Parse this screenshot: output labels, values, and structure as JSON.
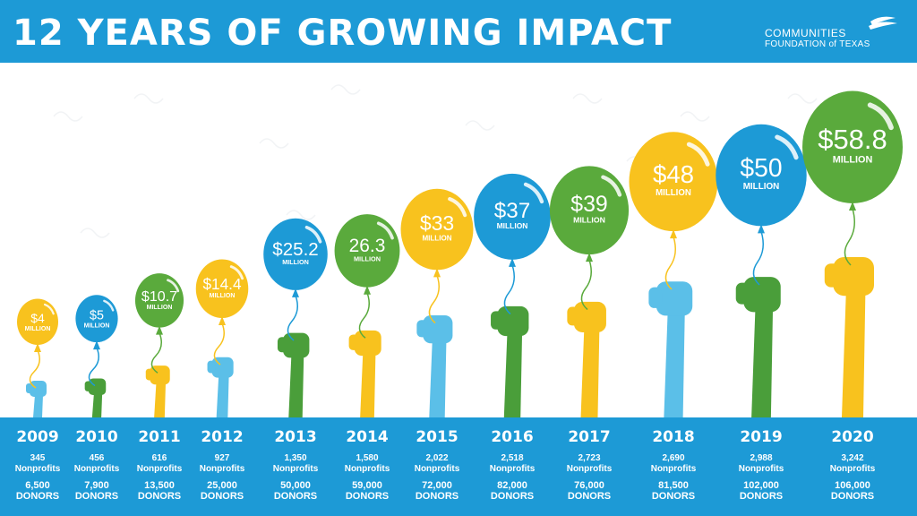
{
  "header": {
    "title": "12 YEARS OF GROWING IMPACT",
    "logo_line1": "COMMUNITIES",
    "logo_line2": "FOUNDATION of TEXAS"
  },
  "colors": {
    "header_blue": "#1d9ad6",
    "balloon_yellow": "#f8c21e",
    "balloon_blue": "#1d9ad6",
    "balloon_green": "#5aaa3c",
    "hand_yellow": "#f8c21e",
    "hand_blue": "#5bbfe8",
    "hand_green": "#4a9e3a"
  },
  "chart_data": {
    "type": "bar",
    "title": "12 YEARS OF GROWING IMPACT",
    "unit": "MILLION",
    "categories": [
      "2009",
      "2010",
      "2011",
      "2012",
      "2013",
      "2014",
      "2015",
      "2016",
      "2017",
      "2018",
      "2019",
      "2020"
    ],
    "values": [
      4,
      5,
      10.7,
      14.4,
      25.2,
      26.3,
      33,
      37,
      39,
      48,
      50,
      58.8
    ],
    "value_labels": [
      "$4",
      "$5",
      "$10.7",
      "$14.4",
      "$25.2",
      "26.3",
      "$33",
      "$37",
      "$39",
      "$48",
      "$50",
      "$58.8"
    ],
    "nonprofits": [
      "345",
      "456",
      "616",
      "927",
      "1,350",
      "1,580",
      "2,022",
      "2,518",
      "2,723",
      "2,690",
      "2,988",
      "3,242"
    ],
    "nonprofits_label": "Nonprofits",
    "donors": [
      "6,500",
      "7,900",
      "13,500",
      "25,000",
      "50,000",
      "59,000",
      "72,000",
      "82,000",
      "76,000",
      "81,500",
      "102,000",
      "106,000"
    ],
    "donors_label": "DONORS",
    "balloon_colors": [
      "yellow",
      "blue",
      "green",
      "yellow",
      "blue",
      "green",
      "yellow",
      "blue",
      "green",
      "yellow",
      "blue",
      "green"
    ],
    "hand_colors": [
      "blue",
      "green",
      "yellow",
      "blue",
      "green",
      "yellow",
      "blue",
      "green",
      "yellow",
      "blue",
      "green",
      "yellow"
    ]
  }
}
